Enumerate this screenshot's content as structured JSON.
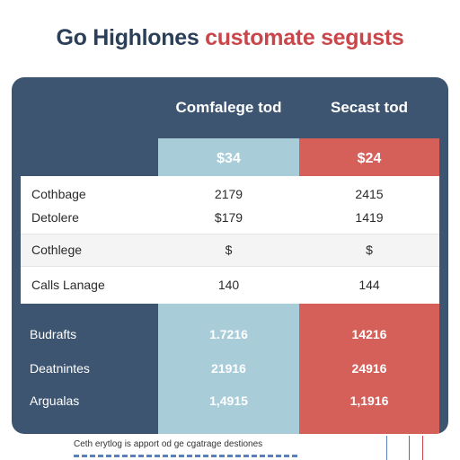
{
  "title": {
    "part1": "Go Highlones",
    "part2": "customate segusts"
  },
  "columns": [
    {
      "header": "Comfalege tod",
      "price": "$34"
    },
    {
      "header": "Secast tod",
      "price": "$24"
    }
  ],
  "light_rows": [
    {
      "label": "Cothbage",
      "a": "2179",
      "b": "2415"
    },
    {
      "label": "Detolere",
      "a": "$179",
      "b": "1419"
    },
    {
      "label": "Cothlege",
      "a": "$",
      "b": "$"
    },
    {
      "label": "Calls Lanage",
      "a": "140",
      "b": "144"
    }
  ],
  "dark_rows": [
    {
      "label": "Budrafts",
      "a": "1.7216",
      "b": "14216"
    },
    {
      "label": "Deatnintes",
      "a": "21916",
      "b": "24916"
    },
    {
      "label": "Argualas",
      "a": "1,4915",
      "b": "1,1916"
    }
  ],
  "footnote": "Ceth erytlog is apport od ge cgatrage destiones",
  "colors": {
    "navy": "#3d5570",
    "blue_col": "#a9ccd9",
    "red_col": "#d5605a",
    "title_red": "#c9474a",
    "title_dark": "#2b4058"
  }
}
